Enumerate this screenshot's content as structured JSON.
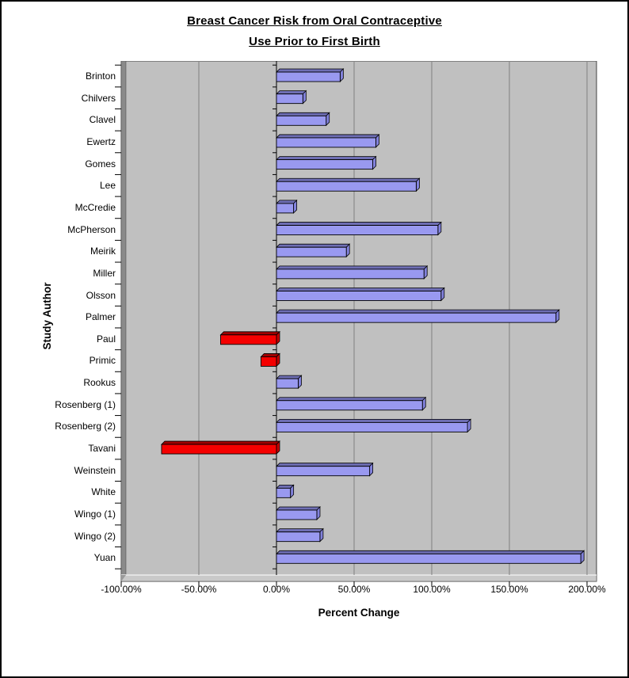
{
  "window": {
    "background_color": "#FFFFFF",
    "border_color": "#000000"
  },
  "chart_data": {
    "type": "bar",
    "orientation": "horizontal",
    "title_lines": [
      "Breast Cancer Risk from Oral Contraceptive",
      "Use Prior to First Birth"
    ],
    "xlabel": "Percent Change",
    "ylabel": "Study Author",
    "categories": [
      "Brinton",
      "Chilvers",
      "Clavel",
      "Ewertz",
      "Gomes",
      "Lee",
      "McCredie",
      "McPherson",
      "Meirik",
      "Miller",
      "Olsson",
      "Palmer",
      "Paul",
      "Primic",
      "Rookus",
      "Rosenberg (1)",
      "Rosenberg (2)",
      "Tavani",
      "Weinstein",
      "White",
      "Wingo (1)",
      "Wingo (2)",
      "Yuan"
    ],
    "values": [
      41,
      17,
      32,
      64,
      62,
      90,
      11,
      104,
      45,
      95,
      106,
      180,
      -36,
      -10,
      14,
      94,
      123,
      -74,
      60,
      9,
      26,
      28,
      196
    ],
    "value_unit": "percent",
    "x_ticks": [
      -100,
      -50,
      0,
      50,
      100,
      150,
      200
    ],
    "x_tick_labels": [
      "-100.00%",
      "-50.00%",
      "0.00%",
      "50.00%",
      "100.00%",
      "150.00%",
      "200.00%"
    ],
    "xlim": [
      -100,
      206
    ],
    "grid": true,
    "legend": "none",
    "colors": {
      "positive_face": "#9999F0",
      "positive_top": "#6E6EB4",
      "positive_cap": "#8282DC",
      "negative_face": "#F50000",
      "negative_top": "#A00000",
      "negative_cap": "#C80000",
      "bar_outline": "#000000",
      "plot_wall": "#C0C0C0",
      "side_wall": "#8A8A8A",
      "floor": "#C9C9C9",
      "floor_highlight": "#EDEDED",
      "gridline": "#808080",
      "zero_axis": "#000000",
      "wall_border": "#404040"
    }
  }
}
